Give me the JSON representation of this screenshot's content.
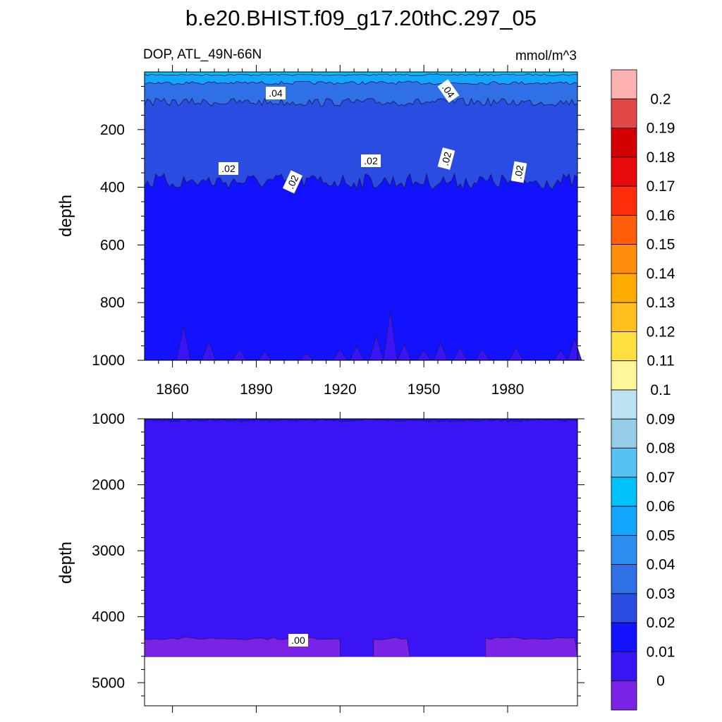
{
  "title": "b.e20.BHIST.f09_g17.20thC.297_05",
  "subtitle_left": "DOP, ATL_49N-66N",
  "subtitle_right": "mmol/m^3",
  "chart_data": [
    {
      "type": "heatmap",
      "panel": "upper",
      "ylabel": "depth",
      "yreversed": true,
      "ylim": [
        0,
        1000
      ],
      "yticks": [
        "200",
        "400",
        "600",
        "800",
        "1000"
      ],
      "xlim": [
        1850,
        2005
      ],
      "xticks": [
        "1860",
        "1890",
        "1920",
        "1950",
        "1980"
      ],
      "contour_labels": [
        ".04",
        ".04",
        ".02",
        ".02",
        ".02",
        ".02",
        ".02"
      ],
      "bands": [
        {
          "range": "0.05-0.06",
          "depth_range": [
            0,
            10
          ]
        },
        {
          "range": "0.04-0.05",
          "depth_range": [
            10,
            40
          ]
        },
        {
          "range": "0.03-0.04",
          "depth_range": [
            40,
            110
          ]
        },
        {
          "range": "0.02-0.03",
          "depth_range": [
            110,
            380
          ]
        },
        {
          "range": "0.01-0.02",
          "depth_range": [
            380,
            1000
          ]
        },
        {
          "range": "0.00-0.01",
          "depth_range": [
            900,
            1000
          ]
        }
      ]
    },
    {
      "type": "heatmap",
      "panel": "lower",
      "ylabel": "depth",
      "yreversed": true,
      "ylim": [
        1000,
        5350
      ],
      "yticks": [
        "1000",
        "2000",
        "3000",
        "4000",
        "5000"
      ],
      "xlim": [
        1850,
        2005
      ],
      "contour_labels": [
        ".00"
      ],
      "bottom_of_data_depth": 4610,
      "bands": [
        {
          "range": "0.01-0.02",
          "depth_range": [
            1000,
            1030
          ]
        },
        {
          "range": "0.00-0.01",
          "depth_range": [
            1030,
            4610
          ]
        },
        {
          "range": "<0",
          "depth_range": [
            4350,
            4610
          ]
        }
      ]
    }
  ],
  "colorbar": {
    "labels": [
      "0.2",
      "0.19",
      "0.18",
      "0.17",
      "0.16",
      "0.15",
      "0.14",
      "0.13",
      "0.12",
      "0.11",
      "0.1",
      "0.09",
      "0.08",
      "0.07",
      "0.06",
      "0.05",
      "0.04",
      "0.03",
      "0.02",
      "0.01",
      "0"
    ],
    "colors": [
      "#ffb2b2",
      "#e14848",
      "#d20000",
      "#e80a0a",
      "#ff2d0a",
      "#ff5e0a",
      "#ff8c0a",
      "#ffab00",
      "#ffbf1f",
      "#ffe040",
      "#fff59a",
      "#bde2f2",
      "#95cde9",
      "#55c2f2",
      "#00c2f8",
      "#12a6ff",
      "#2d8cf0",
      "#3070e6",
      "#2b4ce0",
      "#1312fe",
      "#3a14f5",
      "#7a22e6"
    ]
  }
}
